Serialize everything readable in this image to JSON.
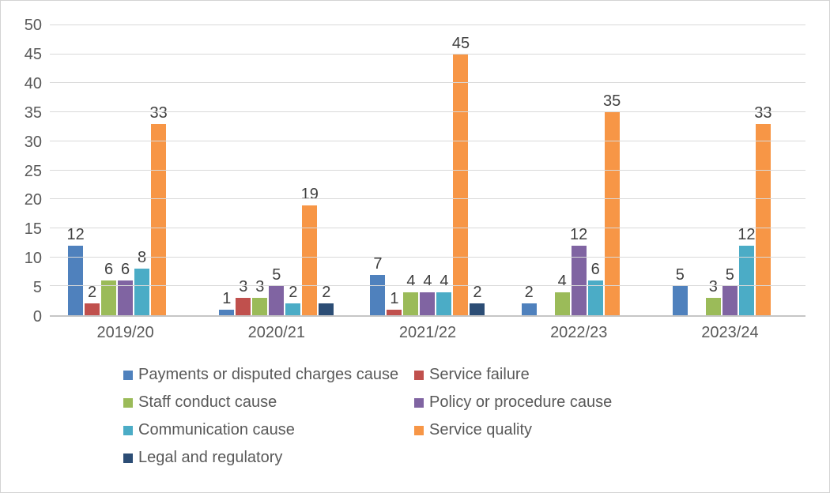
{
  "chart_data": {
    "type": "bar",
    "title": "",
    "xlabel": "",
    "ylabel": "",
    "categories": [
      "2019/20",
      "2020/21",
      "2021/22",
      "2022/23",
      "2023/24"
    ],
    "series": [
      {
        "name": "Payments or disputed charges cause",
        "color": "#4F81BD",
        "values": [
          12,
          1,
          7,
          2,
          5
        ]
      },
      {
        "name": "Service failure",
        "color": "#C0504D",
        "values": [
          2,
          3,
          1,
          null,
          null
        ]
      },
      {
        "name": "Staff conduct cause",
        "color": "#9BBB59",
        "values": [
          6,
          3,
          4,
          4,
          3
        ]
      },
      {
        "name": "Policy or procedure cause",
        "color": "#8064A2",
        "values": [
          6,
          5,
          4,
          12,
          5
        ]
      },
      {
        "name": "Communication cause",
        "color": "#4BACC6",
        "values": [
          8,
          2,
          4,
          6,
          12
        ]
      },
      {
        "name": "Service quality",
        "color": "#F79646",
        "values": [
          33,
          19,
          45,
          35,
          33
        ]
      },
      {
        "name": "Legal and regulatory",
        "color": "#2C4D75",
        "values": [
          null,
          2,
          2,
          null,
          null
        ]
      }
    ],
    "ylim": [
      0,
      50
    ],
    "ytick_step": 5,
    "grid": true,
    "data_labels": true,
    "legend_position": "bottom",
    "legend_columns": 2
  },
  "colors": {
    "background": "#ffffff",
    "frame_border": "#d3d3d3",
    "gridline": "#d9d9d9",
    "axis_line": "#c6c6c6",
    "axis_text": "#595959",
    "data_label_text": "#404040"
  }
}
